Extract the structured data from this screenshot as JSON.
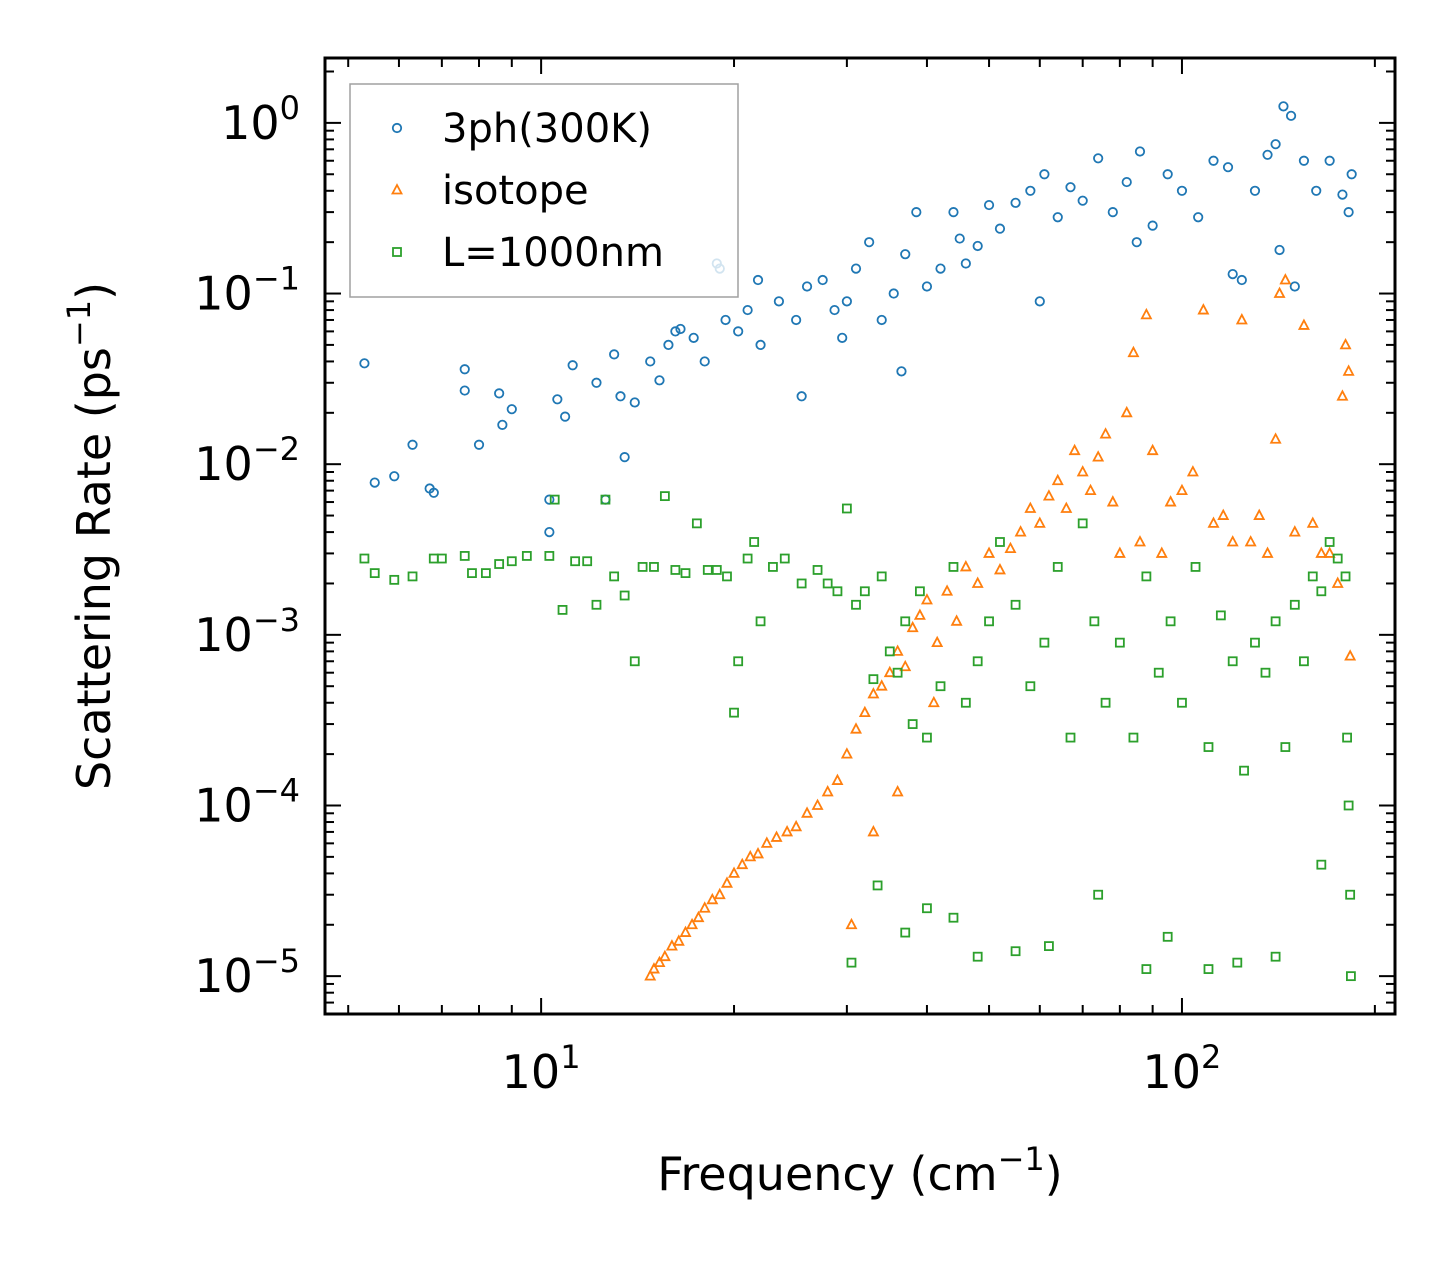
{
  "chart_data": {
    "type": "scatter",
    "title": "",
    "xlabel": "Frequency (cm",
    "xlabel_sup": "−1",
    "xlabel_end": ")",
    "ylabel": "Scattering Rate (ps",
    "ylabel_sup": "−1",
    "ylabel_end": ")",
    "xscale": "log",
    "yscale": "log",
    "xlim": [
      4.6,
      215
    ],
    "ylim": [
      6e-06,
      2.4
    ],
    "x_ticks": [
      {
        "value": 10,
        "base": "10",
        "exp": "1"
      },
      {
        "value": 100,
        "base": "10",
        "exp": "2"
      }
    ],
    "y_ticks": [
      {
        "value": 1,
        "base": "10",
        "exp": "0"
      },
      {
        "value": 0.1,
        "base": "10",
        "exp": "−1"
      },
      {
        "value": 0.01,
        "base": "10",
        "exp": "−2"
      },
      {
        "value": 0.001,
        "base": "10",
        "exp": "−3"
      },
      {
        "value": 0.0001,
        "base": "10",
        "exp": "−4"
      },
      {
        "value": 1e-05,
        "base": "10",
        "exp": "−5"
      }
    ],
    "legend_position": "top-left",
    "series": [
      {
        "name": "3ph(300K)",
        "marker": "circle",
        "color": "#1f77b4",
        "x": [
          5.3,
          5.5,
          5.9,
          6.3,
          6.7,
          6.8,
          7.6,
          7.6,
          8.0,
          8.6,
          8.7,
          9.0,
          10.3,
          10.3,
          10.6,
          10.9,
          11.2,
          12.2,
          12.6,
          13.0,
          13.3,
          14.0,
          14.8,
          15.3,
          15.8,
          16.5,
          17.3,
          18.0,
          18.8,
          19.4,
          20.3,
          21.0,
          21.8,
          22.0,
          23.5,
          25.0,
          26.0,
          27.5,
          28.7,
          30.0,
          31.0,
          32.5,
          34.0,
          35.5,
          37.0,
          38.5,
          40.0,
          42.0,
          44.0,
          46.0,
          48.0,
          50.0,
          52.0,
          55.0,
          58.0,
          61.0,
          64.0,
          67.0,
          70.0,
          74.0,
          78.0,
          82.0,
          86.0,
          90.0,
          95.0,
          100.0,
          106.0,
          112.0,
          118.0,
          124.0,
          130.0,
          136.0,
          140.0,
          142.0,
          144.0,
          148.0,
          155.0,
          162.0,
          170.0,
          178.0,
          182.0,
          184.0,
          13.5,
          16.2,
          19.0,
          25.5,
          29.5,
          36.5,
          45.0,
          60.0,
          85.0,
          120.0,
          150.0
        ],
        "y": [
          0.039,
          0.0078,
          0.0085,
          0.013,
          0.0072,
          0.0068,
          0.036,
          0.027,
          0.013,
          0.026,
          0.017,
          0.021,
          0.004,
          0.0062,
          0.024,
          0.019,
          0.038,
          0.03,
          0.0062,
          0.044,
          0.025,
          0.023,
          0.04,
          0.031,
          0.05,
          0.062,
          0.055,
          0.04,
          0.15,
          0.07,
          0.06,
          0.08,
          0.12,
          0.05,
          0.09,
          0.07,
          0.11,
          0.12,
          0.08,
          0.09,
          0.14,
          0.2,
          0.07,
          0.1,
          0.17,
          0.3,
          0.11,
          0.14,
          0.3,
          0.15,
          0.19,
          0.33,
          0.24,
          0.34,
          0.4,
          0.5,
          0.28,
          0.42,
          0.35,
          0.62,
          0.3,
          0.45,
          0.68,
          0.25,
          0.5,
          0.4,
          0.28,
          0.6,
          0.55,
          0.12,
          0.4,
          0.65,
          0.75,
          0.18,
          1.25,
          1.1,
          0.6,
          0.4,
          0.6,
          0.38,
          0.3,
          0.5,
          0.011,
          0.06,
          0.14,
          0.025,
          0.055,
          0.035,
          0.21,
          0.09,
          0.2,
          0.13,
          0.11
        ]
      },
      {
        "name": "isotope",
        "marker": "triangle",
        "color": "#ff7f0e",
        "x": [
          14.8,
          15.0,
          15.3,
          15.6,
          16.0,
          16.4,
          16.8,
          17.2,
          17.6,
          18.0,
          18.5,
          19.0,
          19.5,
          20.0,
          20.6,
          21.2,
          21.8,
          22.5,
          23.3,
          24.2,
          25.0,
          26.0,
          27.0,
          28.0,
          29.0,
          30.0,
          31.0,
          32.0,
          33.0,
          34.0,
          35.0,
          36.0,
          37.0,
          38.0,
          39.0,
          40.0,
          41.5,
          43.0,
          44.5,
          46.0,
          48.0,
          50.0,
          52.0,
          54.0,
          56.0,
          58.0,
          60.0,
          62.0,
          64.0,
          66.0,
          68.0,
          70.0,
          72.0,
          74.0,
          76.0,
          78.0,
          80.0,
          82.0,
          84.0,
          86.0,
          88.0,
          90.0,
          93.0,
          96.0,
          100.0,
          104.0,
          108.0,
          112.0,
          116.0,
          120.0,
          124.0,
          128.0,
          132.0,
          136.0,
          140.0,
          142.0,
          145.0,
          150.0,
          155.0,
          160.0,
          165.0,
          170.0,
          175.0,
          178.0,
          180.0,
          182.0,
          183.0,
          30.5,
          33.0,
          36.0,
          41.0
        ],
        "y": [
          1e-05,
          1.1e-05,
          1.2e-05,
          1.3e-05,
          1.5e-05,
          1.6e-05,
          1.8e-05,
          2e-05,
          2.2e-05,
          2.5e-05,
          2.8e-05,
          3e-05,
          3.5e-05,
          4e-05,
          4.5e-05,
          5e-05,
          5.2e-05,
          6e-05,
          6.5e-05,
          7e-05,
          7.5e-05,
          9e-05,
          0.0001,
          0.00012,
          0.00014,
          0.0002,
          0.00028,
          0.00035,
          0.00045,
          0.0005,
          0.0006,
          0.0008,
          0.00065,
          0.0011,
          0.0013,
          0.0016,
          0.0009,
          0.0018,
          0.0012,
          0.0025,
          0.002,
          0.003,
          0.0024,
          0.0032,
          0.004,
          0.0055,
          0.0045,
          0.0065,
          0.008,
          0.0055,
          0.012,
          0.009,
          0.007,
          0.011,
          0.015,
          0.006,
          0.003,
          0.02,
          0.045,
          0.0035,
          0.075,
          0.012,
          0.003,
          0.006,
          0.007,
          0.009,
          0.08,
          0.0045,
          0.005,
          0.0035,
          0.07,
          0.0035,
          0.005,
          0.003,
          0.014,
          0.1,
          0.12,
          0.004,
          0.065,
          0.0045,
          0.003,
          0.003,
          0.002,
          0.025,
          0.05,
          0.035,
          0.00075,
          2e-05,
          7e-05,
          0.00012,
          0.0004
        ]
      },
      {
        "name": "L=1000nm",
        "marker": "square",
        "color": "#2ca02c",
        "x": [
          5.3,
          5.5,
          5.9,
          6.3,
          6.8,
          7.0,
          7.6,
          7.8,
          8.2,
          8.6,
          9.0,
          9.5,
          10.3,
          10.5,
          10.8,
          11.3,
          11.8,
          12.2,
          12.6,
          13.0,
          13.5,
          14.0,
          14.4,
          15.0,
          15.6,
          16.2,
          16.8,
          17.5,
          18.2,
          18.8,
          19.5,
          20.0,
          20.3,
          21.0,
          21.5,
          22.0,
          23.0,
          24.0,
          25.5,
          27.0,
          28.0,
          29.0,
          30.0,
          31.0,
          32.0,
          33.0,
          34.0,
          35.0,
          36.0,
          37.0,
          38.0,
          39.0,
          40.0,
          42.0,
          44.0,
          46.0,
          48.0,
          50.0,
          52.0,
          55.0,
          58.0,
          61.0,
          64.0,
          67.0,
          70.0,
          73.0,
          76.0,
          80.0,
          84.0,
          88.0,
          92.0,
          96.0,
          100.0,
          105.0,
          110.0,
          115.0,
          120.0,
          125.0,
          130.0,
          135.0,
          140.0,
          145.0,
          150.0,
          155.0,
          160.0,
          165.0,
          170.0,
          175.0,
          180.0,
          181.0,
          182.0,
          183.0,
          183.5,
          30.5,
          33.5,
          37.0,
          40.0,
          44.0,
          48.0,
          55.0,
          62.0,
          74.0,
          88.0,
          95.0,
          110.0,
          122.0,
          140.0,
          165.0
        ],
        "y": [
          0.0028,
          0.0023,
          0.0021,
          0.0022,
          0.0028,
          0.0028,
          0.0029,
          0.0023,
          0.0023,
          0.0026,
          0.0027,
          0.0029,
          0.0029,
          0.0062,
          0.0014,
          0.0027,
          0.0027,
          0.0015,
          0.0062,
          0.0022,
          0.0017,
          0.0007,
          0.0025,
          0.0025,
          0.0065,
          0.0024,
          0.0023,
          0.0045,
          0.0024,
          0.0024,
          0.0022,
          0.00035,
          0.0007,
          0.0028,
          0.0035,
          0.0012,
          0.0025,
          0.0028,
          0.002,
          0.0024,
          0.002,
          0.0018,
          0.0055,
          0.0015,
          0.0018,
          0.00055,
          0.0022,
          0.0008,
          0.0006,
          0.0012,
          0.0003,
          0.0018,
          0.00025,
          0.0005,
          0.0025,
          0.0004,
          0.0007,
          0.0012,
          0.0035,
          0.0015,
          0.0005,
          0.0009,
          0.0025,
          0.00025,
          0.0045,
          0.0012,
          0.0004,
          0.0009,
          0.00025,
          0.0022,
          0.0006,
          0.0012,
          0.0004,
          0.0025,
          0.00022,
          0.0013,
          0.0007,
          0.00016,
          0.0009,
          0.0006,
          0.0012,
          0.00022,
          0.0015,
          0.0007,
          0.0022,
          0.0018,
          0.0035,
          0.0028,
          0.0022,
          0.00025,
          0.0001,
          3e-05,
          1e-05,
          1.2e-05,
          3.4e-05,
          1.8e-05,
          2.5e-05,
          2.2e-05,
          1.3e-05,
          1.4e-05,
          1.5e-05,
          3e-05,
          1.1e-05,
          1.7e-05,
          1.1e-05,
          1.2e-05,
          1.3e-05,
          4.5e-05
        ]
      }
    ]
  }
}
